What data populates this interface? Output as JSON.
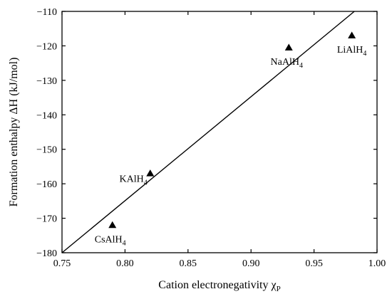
{
  "chart_data": {
    "type": "scatter",
    "xlabel": "Cation electronegativity χ",
    "xlabel_sub": "P",
    "ylabel": "Formation enthalpy ΔH (kJ/mol)",
    "xlim": [
      0.75,
      1.0
    ],
    "ylim": [
      -180,
      -110
    ],
    "xticks": [
      0.75,
      0.8,
      0.85,
      0.9,
      0.95,
      1.0
    ],
    "xtick_labels": [
      "0.75",
      "0.80",
      "0.85",
      "0.90",
      "0.95",
      "1.00"
    ],
    "yticks": [
      -180,
      -170,
      -160,
      -150,
      -140,
      -130,
      -120,
      -110
    ],
    "ytick_labels": [
      "−180",
      "−170",
      "−160",
      "−150",
      "−140",
      "−130",
      "−120",
      "−110"
    ],
    "grid": false,
    "marker": "triangle",
    "points": [
      {
        "label": "CsAlH",
        "label_sub": "4",
        "x": 0.79,
        "y": -172,
        "label_pos": "below"
      },
      {
        "label": "KAlH",
        "label_sub": "4",
        "x": 0.82,
        "y": -157,
        "label_pos": "left"
      },
      {
        "label": "NaAlH",
        "label_sub": "4",
        "x": 0.93,
        "y": -120.5,
        "label_pos": "below"
      },
      {
        "label": "LiAlH",
        "label_sub": "4",
        "x": 0.98,
        "y": -117,
        "label_pos": "below"
      }
    ],
    "fit_line": {
      "x": [
        0.75,
        0.982
      ],
      "y": [
        -180,
        -110
      ]
    }
  }
}
